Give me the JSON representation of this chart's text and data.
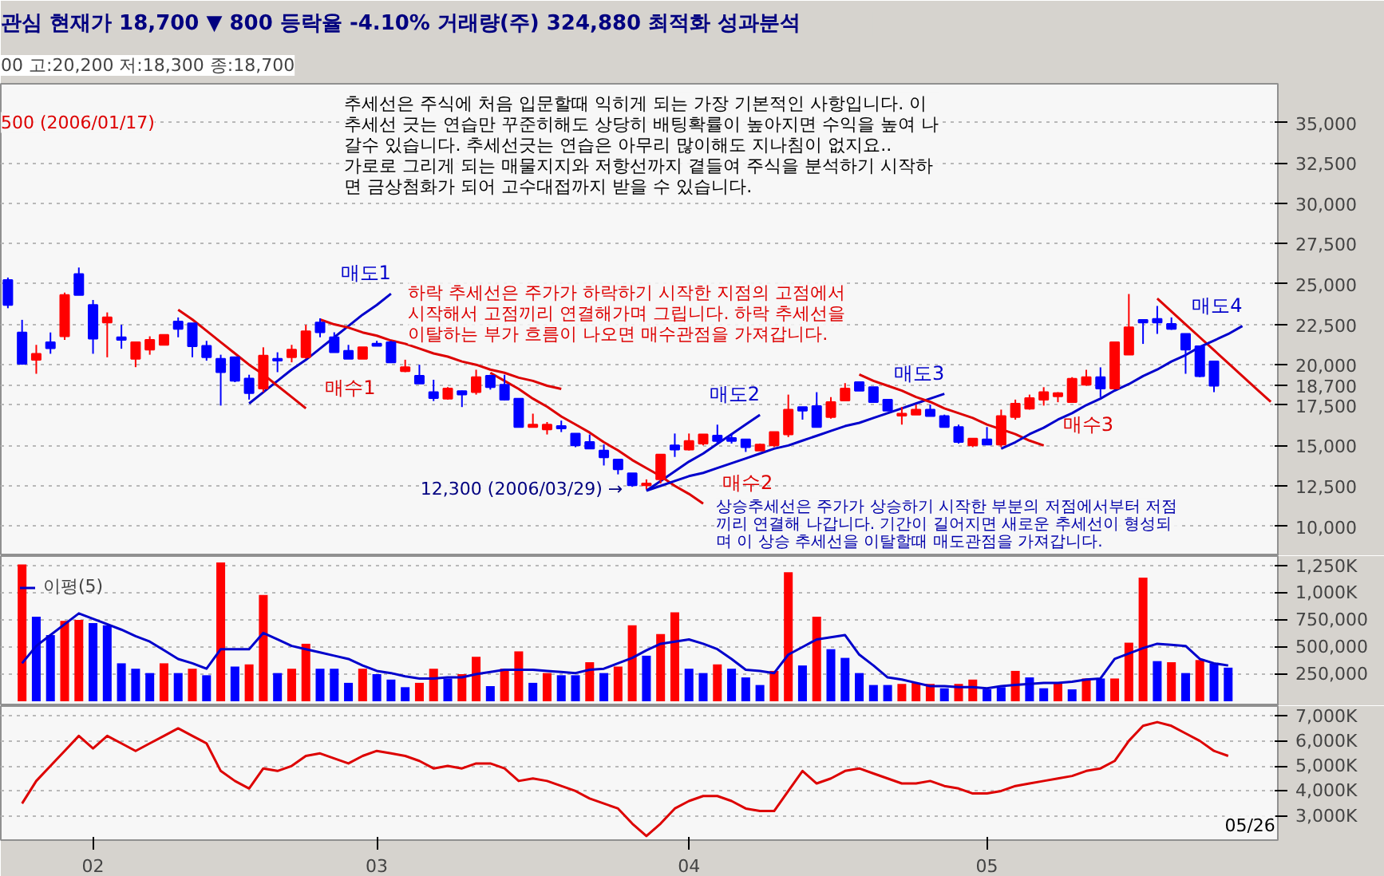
{
  "chart_data": [
    {
      "type": "candlestick",
      "title": "관심  현재가  18,700  ▼  800  등락율  -4.10%  거래량(주)  324,880  최적화  성과분석",
      "subtitle": "00 고:20,200 저:18,300 종:18,700",
      "categories": [
        null,
        null,
        null,
        null,
        null,
        null,
        null,
        null,
        null,
        null,
        null,
        null,
        null,
        null,
        null,
        null,
        null,
        null,
        null,
        null,
        null,
        null,
        null,
        null,
        null,
        null,
        null,
        null,
        null,
        null,
        null,
        null,
        null,
        null,
        null,
        null,
        null,
        null,
        null,
        null,
        null,
        null,
        null,
        null,
        null,
        null,
        null,
        null,
        null,
        null,
        null,
        null,
        null,
        null,
        null,
        null,
        null,
        null,
        null,
        null,
        null,
        null,
        null,
        null,
        null,
        null,
        null,
        null,
        null,
        null,
        null,
        null,
        null,
        null,
        null,
        null,
        null,
        null,
        null,
        null,
        null,
        null,
        null,
        null,
        null,
        null,
        null,
        null,
        null,
        null
      ],
      "ohlc": [
        [
          25250,
          25400,
          23500,
          23700
        ],
        [
          22000,
          22780,
          20000,
          20060
        ],
        [
          20310,
          21230,
          19440,
          20680
        ],
        [
          21390,
          22000,
          20680,
          21020
        ],
        [
          21760,
          24470,
          21540,
          24320
        ],
        [
          25620,
          26020,
          24320,
          24320
        ],
        [
          23700,
          24010,
          20680,
          21610
        ],
        [
          22620,
          23240,
          20460,
          22930
        ],
        [
          21700,
          22470,
          20990,
          21540
        ],
        [
          20370,
          21390,
          19850,
          21390
        ],
        [
          20930,
          21760,
          20620,
          21540
        ],
        [
          21230,
          21850,
          21230,
          21850
        ],
        [
          22680,
          22930,
          21700,
          22220
        ],
        [
          22560,
          22560,
          20460,
          21140
        ],
        [
          21170,
          21480,
          20250,
          20460
        ],
        [
          20370,
          20620,
          17470,
          19540
        ],
        [
          20460,
          20460,
          18920,
          19010
        ],
        [
          19140,
          19380,
          17840,
          18240
        ],
        [
          18520,
          21080,
          18300,
          20560
        ],
        [
          20370,
          20770,
          19540,
          20250
        ],
        [
          20460,
          21230,
          20150,
          20930
        ],
        [
          20460,
          22470,
          20370,
          22070
        ],
        [
          22620,
          22870,
          21700,
          22010
        ],
        [
          21700,
          22010,
          20770,
          20770
        ],
        [
          20860,
          21230,
          20370,
          20370
        ],
        [
          20370,
          21080,
          20370,
          21080
        ],
        [
          21300,
          21480,
          21170,
          21170
        ],
        [
          21390,
          21480,
          20150,
          20150
        ],
        [
          19600,
          20310,
          19540,
          19850
        ],
        [
          19320,
          20000,
          18830,
          18830
        ],
        [
          18300,
          19070,
          17750,
          17930
        ],
        [
          17900,
          18610,
          17840,
          18520
        ],
        [
          18360,
          18400,
          17380,
          18150
        ],
        [
          18300,
          19690,
          18150,
          19230
        ],
        [
          19320,
          19380,
          18460,
          18610
        ],
        [
          18760,
          19380,
          17780,
          17840
        ],
        [
          17900,
          17900,
          16140,
          16140
        ],
        [
          16140,
          16970,
          16140,
          16290
        ],
        [
          15990,
          16450,
          15680,
          16290
        ],
        [
          16200,
          16540,
          15830,
          16050
        ],
        [
          15740,
          15740,
          14900,
          15000
        ],
        [
          15210,
          15680,
          14810,
          14810
        ],
        [
          14690,
          15060,
          13760,
          14260
        ],
        [
          14130,
          14130,
          13210,
          13520
        ],
        [
          13270,
          13270,
          12440,
          12530
        ],
        [
          12530,
          12900,
          12300,
          12650
        ],
        [
          12900,
          14440,
          12650,
          14440
        ],
        [
          15000,
          15740,
          14290,
          14750
        ],
        [
          14750,
          15740,
          14690,
          15280
        ],
        [
          15120,
          15680,
          15000,
          15680
        ],
        [
          15610,
          16290,
          15120,
          15280
        ],
        [
          15460,
          15740,
          15120,
          15280
        ],
        [
          15370,
          15370,
          14600,
          14900
        ],
        [
          14690,
          15120,
          14690,
          15060
        ],
        [
          15000,
          15830,
          14900,
          15830
        ],
        [
          15680,
          18150,
          15520,
          17220
        ],
        [
          17380,
          17380,
          16600,
          17160
        ],
        [
          17440,
          18300,
          16140,
          16140
        ],
        [
          16760,
          17990,
          16660,
          17680
        ],
        [
          17780,
          18860,
          17780,
          18520
        ],
        [
          18920,
          18920,
          18390,
          18390
        ],
        [
          18610,
          18610,
          17680,
          17680
        ],
        [
          17840,
          17840,
          17160,
          17160
        ],
        [
          16850,
          17380,
          16290,
          16970
        ],
        [
          16910,
          17530,
          16910,
          17220
        ],
        [
          17220,
          17530,
          16820,
          16820
        ],
        [
          16820,
          16910,
          16140,
          16140
        ],
        [
          16140,
          16290,
          15120,
          15210
        ],
        [
          15000,
          15430,
          14900,
          15430
        ],
        [
          15370,
          16140,
          15060,
          15060
        ],
        [
          15060,
          17220,
          14900,
          16820
        ],
        [
          16760,
          17840,
          16600,
          17590
        ],
        [
          17280,
          18150,
          17220,
          17930
        ],
        [
          17840,
          18610,
          17470,
          18300
        ],
        [
          18050,
          18300,
          17680,
          18240
        ],
        [
          17680,
          19230,
          17680,
          19130
        ],
        [
          18760,
          19690,
          18700,
          19230
        ],
        [
          19230,
          19840,
          17990,
          18520
        ],
        [
          18520,
          21390,
          18520,
          21390
        ],
        [
          20620,
          24380,
          20620,
          22320
        ],
        [
          22780,
          22780,
          21290,
          22620
        ],
        [
          22840,
          23640,
          21910,
          22620
        ],
        [
          22530,
          22930,
          22160,
          22220
        ],
        [
          21910,
          21910,
          19440,
          20930
        ],
        [
          21140,
          21140,
          19230,
          19290
        ],
        [
          20200,
          20200,
          18300,
          18700
        ],
        null,
        null,
        null,
        null
      ],
      "ylim": [
        8150,
        37400
      ],
      "yticks": [
        {
          "value": 10000,
          "label": "10,000"
        },
        {
          "value": 12500,
          "label": "12,500"
        },
        {
          "value": 15000,
          "label": "15,000"
        },
        {
          "value": 17500,
          "label": "17,500"
        },
        {
          "value": 18700,
          "label": "18,700"
        },
        {
          "value": 20000,
          "label": "20,000"
        },
        {
          "value": 22500,
          "label": "22,500"
        },
        {
          "value": 25000,
          "label": "25,000"
        },
        {
          "value": 27500,
          "label": "27,500"
        },
        {
          "value": 30000,
          "label": "30,000"
        },
        {
          "value": 32500,
          "label": "32,500"
        },
        {
          "value": 35000,
          "label": "35,000"
        }
      ],
      "grid": "y",
      "tick_labels": "y",
      "series": [
        {
          "type": "line",
          "name": "매도1",
          "color": "#0000cc",
          "values": [
            null,
            null,
            null,
            null,
            null,
            null,
            null,
            null,
            null,
            null,
            null,
            null,
            null,
            null,
            null,
            null,
            null,
            17600,
            18300,
            19000,
            19700,
            20300,
            21000,
            21700,
            22400,
            23100,
            23700,
            24400,
            null,
            null,
            null,
            null,
            null,
            null,
            null,
            null,
            null,
            null,
            null,
            null,
            null,
            null,
            null,
            null,
            null,
            null,
            null,
            null,
            null,
            null,
            null,
            null,
            null,
            null,
            null,
            null,
            null,
            null,
            null,
            null,
            null,
            null,
            null,
            null,
            null,
            null,
            null,
            null,
            null,
            null,
            null,
            null,
            null,
            null,
            null,
            null,
            null,
            null,
            null,
            null,
            null,
            null,
            null,
            null,
            null,
            null,
            null,
            null,
            null,
            null
          ]
        },
        {
          "type": "line",
          "name": "매수1",
          "color": "#dd0000",
          "values": [
            null,
            null,
            null,
            null,
            null,
            null,
            null,
            null,
            null,
            null,
            null,
            null,
            23400,
            22800,
            22100,
            21400,
            20700,
            20000,
            19400,
            18700,
            18000,
            17300,
            null,
            null,
            null,
            null,
            null,
            null,
            null,
            null,
            null,
            null,
            null,
            null,
            null,
            null,
            null,
            null,
            null,
            null,
            null,
            null,
            null,
            null,
            null,
            null,
            null,
            null,
            null,
            null,
            null,
            null,
            null,
            null,
            null,
            null,
            null,
            null,
            null,
            null,
            null,
            null,
            null,
            null,
            null,
            null,
            null,
            null,
            null,
            null,
            null,
            null,
            null,
            null,
            null,
            null,
            null,
            null,
            null,
            null,
            null,
            null,
            null,
            null,
            null,
            null,
            null,
            null,
            null,
            null
          ]
        },
        {
          "type": "line",
          "color": "#dd0000",
          "values": [
            null,
            null,
            null,
            null,
            null,
            null,
            null,
            null,
            null,
            null,
            null,
            null,
            null,
            null,
            null,
            null,
            null,
            null,
            null,
            null,
            null,
            null,
            22800,
            22500,
            22300,
            22000,
            21800,
            21500,
            21300,
            21000,
            20700,
            20500,
            20200,
            20000,
            19700,
            19500,
            19200,
            19000,
            18700,
            18500,
            null,
            null,
            null,
            null,
            null,
            null,
            null,
            null,
            null,
            null,
            null,
            null,
            null,
            null,
            null,
            null,
            null,
            null,
            null,
            null,
            null,
            null,
            null,
            null,
            null,
            null,
            null,
            null,
            null,
            null,
            null,
            null,
            null,
            null,
            null,
            null,
            null,
            null,
            null,
            null,
            null,
            null,
            null,
            null,
            null,
            null,
            null,
            null,
            null,
            null
          ]
        },
        {
          "type": "line",
          "name": "매수2",
          "color": "#dd0000",
          "values": [
            null,
            null,
            null,
            null,
            null,
            null,
            null,
            null,
            null,
            null,
            null,
            null,
            null,
            null,
            null,
            null,
            null,
            null,
            null,
            null,
            null,
            null,
            null,
            null,
            null,
            null,
            null,
            null,
            null,
            null,
            null,
            null,
            null,
            null,
            19500,
            19000,
            18500,
            17900,
            17400,
            16800,
            16300,
            15800,
            15200,
            14700,
            14100,
            13600,
            13100,
            12500,
            12000,
            11400,
            null,
            null,
            null,
            null,
            null,
            null,
            null,
            null,
            null,
            null,
            null,
            null,
            null,
            null,
            null,
            null,
            null,
            null,
            null,
            null,
            null,
            null,
            null,
            null,
            null,
            null,
            null,
            null,
            null,
            null,
            null,
            null,
            null,
            null,
            null,
            null,
            null,
            null,
            null,
            null
          ]
        },
        {
          "type": "line",
          "name": "매도2",
          "color": "#0000cc",
          "values": [
            null,
            null,
            null,
            null,
            null,
            null,
            null,
            null,
            null,
            null,
            null,
            null,
            null,
            null,
            null,
            null,
            null,
            null,
            null,
            null,
            null,
            null,
            null,
            null,
            null,
            null,
            null,
            null,
            null,
            null,
            null,
            null,
            null,
            null,
            null,
            null,
            null,
            null,
            null,
            null,
            null,
            null,
            null,
            null,
            null,
            12200,
            12800,
            13400,
            14000,
            14500,
            15100,
            15700,
            16300,
            16900,
            null,
            null,
            null,
            null,
            null,
            null,
            null,
            null,
            null,
            null,
            null,
            null,
            null,
            null,
            null,
            null,
            null,
            null,
            null,
            null,
            null,
            null,
            null,
            null,
            null,
            null,
            null,
            null,
            null,
            null,
            null,
            null,
            null,
            null,
            null,
            null
          ]
        },
        {
          "type": "line",
          "name": "매도3",
          "color": "#0000cc",
          "values": [
            null,
            null,
            null,
            null,
            null,
            null,
            null,
            null,
            null,
            null,
            null,
            null,
            null,
            null,
            null,
            null,
            null,
            null,
            null,
            null,
            null,
            null,
            null,
            null,
            null,
            null,
            null,
            null,
            null,
            null,
            null,
            null,
            null,
            null,
            null,
            null,
            null,
            null,
            null,
            null,
            null,
            null,
            null,
            null,
            null,
            12200,
            12500,
            12800,
            13100,
            13300,
            13600,
            13900,
            14200,
            14500,
            14800,
            15000,
            15300,
            15600,
            15900,
            16200,
            16400,
            16700,
            17000,
            17300,
            17600,
            17900,
            18200,
            null,
            null,
            null,
            null,
            null,
            null,
            null,
            null,
            null,
            null,
            null,
            null,
            null,
            null,
            null,
            null,
            null,
            null,
            null,
            null,
            null,
            null,
            null
          ]
        },
        {
          "type": "line",
          "name": "매수3",
          "color": "#dd0000",
          "values": [
            null,
            null,
            null,
            null,
            null,
            null,
            null,
            null,
            null,
            null,
            null,
            null,
            null,
            null,
            null,
            null,
            null,
            null,
            null,
            null,
            null,
            null,
            null,
            null,
            null,
            null,
            null,
            null,
            null,
            null,
            null,
            null,
            null,
            null,
            null,
            null,
            null,
            null,
            null,
            null,
            null,
            null,
            null,
            null,
            null,
            null,
            null,
            null,
            null,
            null,
            null,
            null,
            null,
            null,
            null,
            null,
            null,
            null,
            null,
            null,
            19400,
            19000,
            18700,
            18400,
            18000,
            17700,
            17300,
            17000,
            16700,
            16300,
            16000,
            15700,
            15300,
            15000,
            null,
            null,
            null,
            null,
            null,
            null,
            null,
            null,
            null,
            null,
            null,
            null,
            null,
            null,
            null,
            null
          ]
        },
        {
          "type": "line",
          "color": "#dd0000",
          "values": [
            null,
            null,
            null,
            null,
            null,
            null,
            null,
            null,
            null,
            null,
            null,
            null,
            null,
            null,
            null,
            null,
            null,
            null,
            null,
            null,
            null,
            null,
            null,
            null,
            null,
            null,
            null,
            null,
            null,
            null,
            null,
            null,
            null,
            null,
            null,
            null,
            null,
            null,
            null,
            null,
            null,
            null,
            null,
            null,
            null,
            null,
            null,
            null,
            null,
            null,
            null,
            null,
            null,
            null,
            null,
            null,
            null,
            null,
            null,
            null,
            null,
            null,
            null,
            null,
            null,
            null,
            null,
            null,
            null,
            null,
            null,
            null,
            null,
            null,
            null,
            null,
            null,
            null,
            null,
            null,
            null,
            24100,
            23300,
            22500,
            21700,
            20900,
            20100,
            19300,
            18500,
            17700
          ]
        },
        {
          "type": "line",
          "name": "매도4",
          "color": "#0000cc",
          "values": [
            null,
            null,
            null,
            null,
            null,
            null,
            null,
            null,
            null,
            null,
            null,
            null,
            null,
            null,
            null,
            null,
            null,
            null,
            null,
            null,
            null,
            null,
            null,
            null,
            null,
            null,
            null,
            null,
            null,
            null,
            null,
            null,
            null,
            null,
            null,
            null,
            null,
            null,
            null,
            null,
            null,
            null,
            null,
            null,
            null,
            null,
            null,
            null,
            null,
            null,
            null,
            null,
            null,
            null,
            null,
            null,
            null,
            null,
            null,
            null,
            null,
            null,
            null,
            null,
            null,
            null,
            null,
            null,
            null,
            null,
            14800,
            15200,
            15700,
            16100,
            16600,
            17000,
            17500,
            17900,
            18400,
            18800,
            19300,
            19700,
            20200,
            20600,
            21100,
            21500,
            21900,
            22400,
            null,
            null
          ]
        }
      ],
      "annotations": [
        "추세선은 주식에 처음 입문할때 익히게 되는 가장 기본적인 사항입니다. 이\n추세선 긋는 연습만 꾸준히해도 상당히 배팅확률이 높아지면 수익을 높여 나\n갈수 있습니다. 추세선긋는 연습은 아무리 많이해도 지나침이 없지요.. \n가로로 그리게 되는 매물지지와 저항선까지 곁들여 주식을 분석하기 시작하\n면 금상첨화가 되어 고수대접까지 받을 수 있습니다.",
        "하락 추세선은 주가가 하락하기 시작한 지점의 고점에서\n시작해서 고점끼리 연결해가며 그립니다. 하락 추세선을\n이탈하는 부가 흐름이 나오면 매수관점을 가져갑니다.",
        "상승추세선은 주가가 상승하기 시작한 부분의 저점에서부터 저점\n끼리 연결해 나갑니다. 기간이 길어지면 새로운 추세선이 형성되\n며 이 상승 추세선을 이탈할때 매도관점을 가져갑니다.",
        "500 (2006/01/17)",
        "12,300 (2006/03/29) →"
      ]
    },
    {
      "type": "bar",
      "categories": [
        null,
        null,
        null,
        null,
        null,
        null,
        null,
        null,
        null,
        null,
        null,
        null,
        null,
        null,
        null,
        null,
        null,
        null,
        null,
        null,
        null,
        null,
        null,
        null,
        null,
        null,
        null,
        null,
        null,
        null,
        null,
        null,
        null,
        null,
        null,
        null,
        null,
        null,
        null,
        null,
        null,
        null,
        null,
        null,
        null,
        null,
        null,
        null,
        null,
        null,
        null,
        null,
        null,
        null,
        null,
        null,
        null,
        null,
        null,
        null,
        null,
        null,
        null,
        null,
        null,
        null,
        null,
        null,
        null,
        null,
        null,
        null,
        null,
        null,
        null,
        null,
        null,
        null,
        null,
        null,
        null,
        null,
        null,
        null,
        null,
        null,
        null,
        null,
        null,
        null
      ],
      "values": [
        null,
        1260000,
        780000,
        610000,
        740000,
        750000,
        720000,
        700000,
        350000,
        300000,
        260000,
        350000,
        260000,
        300000,
        240000,
        1280000,
        320000,
        340000,
        980000,
        260000,
        300000,
        530000,
        300000,
        300000,
        170000,
        300000,
        250000,
        200000,
        130000,
        170000,
        300000,
        210000,
        250000,
        410000,
        140000,
        300000,
        460000,
        170000,
        260000,
        240000,
        240000,
        360000,
        260000,
        320000,
        700000,
        420000,
        620000,
        820000,
        300000,
        260000,
        340000,
        300000,
        220000,
        150000,
        280000,
        1190000,
        330000,
        780000,
        480000,
        400000,
        260000,
        150000,
        150000,
        160000,
        170000,
        160000,
        120000,
        160000,
        200000,
        110000,
        130000,
        280000,
        220000,
        120000,
        170000,
        110000,
        210000,
        210000,
        210000,
        540000,
        1140000,
        370000,
        360000,
        260000,
        380000,
        350000,
        310000,
        null,
        null,
        null
      ],
      "colors": [
        null,
        "#ff0000",
        "#0000ff",
        "#0000ff",
        "#ff0000",
        "#ff0000",
        "#0000ff",
        "#0000ff",
        "#0000ff",
        "#0000ff",
        "#0000ff",
        "#ff0000",
        "#0000ff",
        "#ff0000",
        "#0000ff",
        "#ff0000",
        "#0000ff",
        "#ff0000",
        "#ff0000",
        "#0000ff",
        "#ff0000",
        "#ff0000",
        "#0000ff",
        "#0000ff",
        "#0000ff",
        "#ff0000",
        "#0000ff",
        "#0000ff",
        "#0000ff",
        "#ff0000",
        "#ff0000",
        "#0000ff",
        "#ff0000",
        "#ff0000",
        "#0000ff",
        "#ff0000",
        "#ff0000",
        "#0000ff",
        "#ff0000",
        "#0000ff",
        "#0000ff",
        "#ff0000",
        "#0000ff",
        "#ff0000",
        "#ff0000",
        "#0000ff",
        "#ff0000",
        "#ff0000",
        "#0000ff",
        "#0000ff",
        "#ff0000",
        "#0000ff",
        "#0000ff",
        "#0000ff",
        "#ff0000",
        "#ff0000",
        "#0000ff",
        "#ff0000",
        "#0000ff",
        "#0000ff",
        "#0000ff",
        "#0000ff",
        "#0000ff",
        "#ff0000",
        "#ff0000",
        "#ff0000",
        "#0000ff",
        "#ff0000",
        "#ff0000",
        "#0000ff",
        "#0000ff",
        "#ff0000",
        "#0000ff",
        "#0000ff",
        "#ff0000",
        "#0000ff",
        "#ff0000",
        "#0000ff",
        "#ff0000",
        "#ff0000",
        "#ff0000",
        "#0000ff",
        "#ff0000",
        "#0000ff",
        "#ff0000",
        "#0000ff",
        "#0000ff",
        null,
        null,
        null
      ],
      "ylim": [
        -44000,
        1338000
      ],
      "yticks": [
        {
          "value": 250000,
          "label": "250,000"
        },
        {
          "value": 500000,
          "label": "500,000"
        },
        {
          "value": 750000,
          "label": "750,000"
        },
        {
          "value": 1000000,
          "label": "1,000K"
        },
        {
          "value": 1250000,
          "label": "1,250K"
        }
      ],
      "grid": "y",
      "tick_labels": "y",
      "legend": "top left",
      "series": [
        {
          "type": "line",
          "name": "이평(5)",
          "color": "#0000cc",
          "values": [
            null,
            350000,
            510000,
            610000,
            710000,
            810000,
            760000,
            710000,
            660000,
            600000,
            550000,
            470000,
            390000,
            350000,
            300000,
            480000,
            480000,
            480000,
            630000,
            570000,
            510000,
            480000,
            450000,
            420000,
            390000,
            330000,
            280000,
            260000,
            230000,
            210000,
            210000,
            220000,
            220000,
            250000,
            270000,
            290000,
            290000,
            290000,
            280000,
            270000,
            260000,
            290000,
            300000,
            350000,
            400000,
            470000,
            530000,
            550000,
            570000,
            530000,
            480000,
            390000,
            290000,
            280000,
            260000,
            430000,
            500000,
            570000,
            590000,
            610000,
            430000,
            330000,
            220000,
            200000,
            170000,
            140000,
            140000,
            130000,
            130000,
            120000,
            140000,
            150000,
            160000,
            170000,
            170000,
            180000,
            200000,
            210000,
            390000,
            440000,
            490000,
            530000,
            520000,
            510000,
            390000,
            350000,
            330000,
            null,
            null,
            null
          ]
        }
      ]
    },
    {
      "type": "line",
      "categories": [
        null,
        null,
        null,
        null,
        null,
        null,
        "02",
        null,
        null,
        null,
        null,
        null,
        null,
        null,
        null,
        null,
        null,
        null,
        null,
        null,
        null,
        null,
        null,
        null,
        null,
        null,
        "03",
        null,
        null,
        null,
        null,
        null,
        null,
        null,
        null,
        null,
        null,
        null,
        null,
        null,
        null,
        null,
        null,
        null,
        null,
        null,
        null,
        null,
        "04",
        null,
        null,
        null,
        null,
        null,
        null,
        null,
        null,
        null,
        null,
        null,
        null,
        null,
        null,
        null,
        null,
        null,
        null,
        null,
        null,
        "05",
        null,
        null,
        null,
        null,
        null,
        null,
        null,
        null,
        null,
        null,
        null,
        null,
        null,
        null,
        null,
        null,
        null,
        null,
        null,
        null
      ],
      "ylim": [
        2040000,
        7390000
      ],
      "yticks": [
        {
          "value": 3000000,
          "label": "3,000K"
        },
        {
          "value": 4000000,
          "label": "4,000K"
        },
        {
          "value": 5000000,
          "label": "5,000K"
        },
        {
          "value": 6000000,
          "label": "6,000K"
        },
        {
          "value": 7000000,
          "label": "7,000K"
        }
      ],
      "grid": "y",
      "series": [
        {
          "color": "#dd0000",
          "values": [
            null,
            3500000,
            4400000,
            5000000,
            5600000,
            6200000,
            5700000,
            6200000,
            5900000,
            5600000,
            5900000,
            6200000,
            6500000,
            6200000,
            5900000,
            4800000,
            4400000,
            4100000,
            4900000,
            4800000,
            5000000,
            5400000,
            5500000,
            5300000,
            5100000,
            5400000,
            5600000,
            5500000,
            5400000,
            5200000,
            4900000,
            5000000,
            4900000,
            5100000,
            5100000,
            4900000,
            4400000,
            4500000,
            4400000,
            4200000,
            4000000,
            3700000,
            3500000,
            3300000,
            2700000,
            2200000,
            2700000,
            3300000,
            3600000,
            3800000,
            3800000,
            3600000,
            3300000,
            3200000,
            3200000,
            4000000,
            4800000,
            4300000,
            4500000,
            4800000,
            4900000,
            4700000,
            4500000,
            4300000,
            4300000,
            4400000,
            4200000,
            4100000,
            3900000,
            3900000,
            4000000,
            4200000,
            4300000,
            4400000,
            4500000,
            4600000,
            4800000,
            4900000,
            5200000,
            6000000,
            6600000,
            6750000,
            6600000,
            6300000,
            6000000,
            5600000,
            5400000,
            null,
            null,
            null
          ]
        }
      ],
      "annotations": [
        "05/26"
      ]
    }
  ]
}
